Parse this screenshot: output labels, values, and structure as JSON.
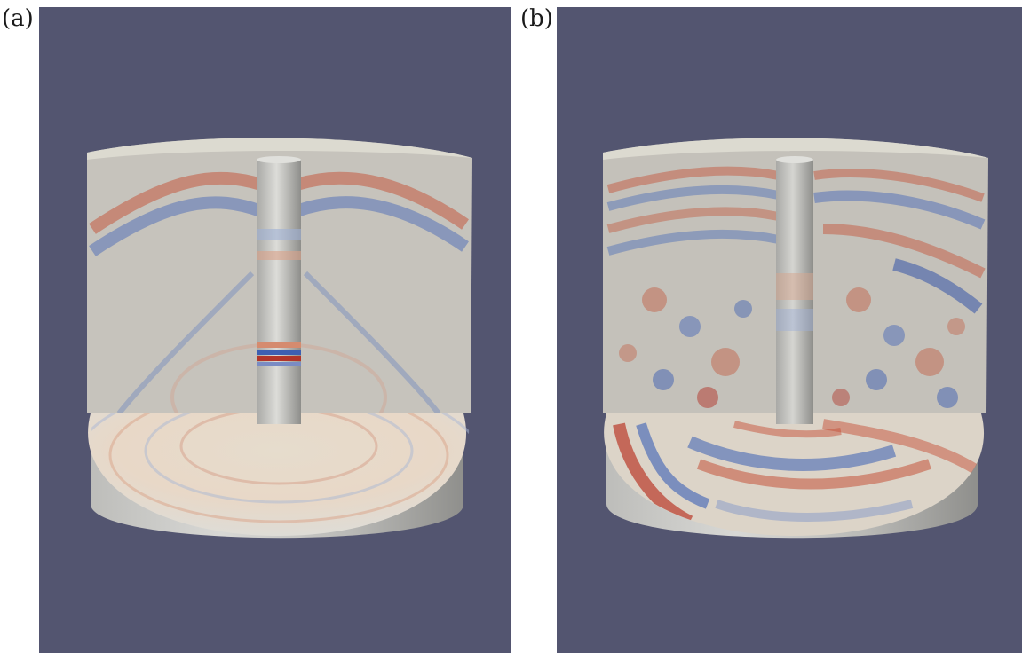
{
  "figure": {
    "panels": [
      {
        "label": "(a)",
        "description_tag": "single-wave"
      },
      {
        "label": "(b)",
        "description_tag": "scattered-wave"
      }
    ],
    "colors": {
      "background": "#535570",
      "solid_surface": "#c7c6c1",
      "shell_side_light": "#d6d6d3",
      "shell_side_dark": "#8f8f8c",
      "positive": "#c0452d",
      "negative": "#3c5fb0",
      "cap": "#dcdad0"
    }
  }
}
